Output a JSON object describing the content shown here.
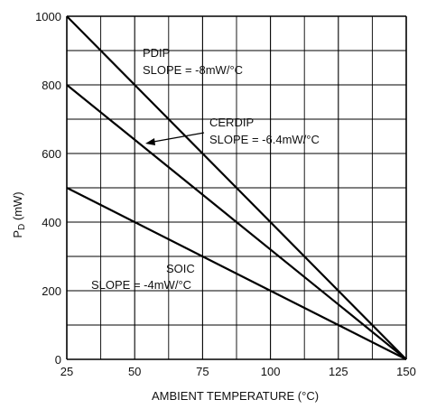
{
  "chart_data": {
    "type": "line",
    "title": "",
    "xlabel": "AMBIENT TEMPERATURE (°C)",
    "ylabel_main": "P",
    "ylabel_sub": "D",
    "ylabel_unit": " (mW)",
    "xlim": [
      25,
      150
    ],
    "ylim": [
      0,
      1000
    ],
    "x_ticks": [
      25,
      50,
      75,
      100,
      125,
      150
    ],
    "y_ticks": [
      0,
      200,
      400,
      600,
      800,
      1000
    ],
    "x_minor_step": 12.5,
    "y_minor_step": 100,
    "grid": true,
    "series": [
      {
        "name": "PDIP",
        "x": [
          25,
          150
        ],
        "y": [
          1000,
          0
        ],
        "slope_label": "SLOPE = -8mW/°C"
      },
      {
        "name": "CERDIP",
        "x": [
          25,
          150
        ],
        "y": [
          800,
          0
        ],
        "slope_label": "SLOPE = -6.4mW/°C"
      },
      {
        "name": "SOIC",
        "x": [
          25,
          150
        ],
        "y": [
          500,
          0
        ],
        "slope_label": "SLOPE = -4mW/°C"
      }
    ]
  }
}
